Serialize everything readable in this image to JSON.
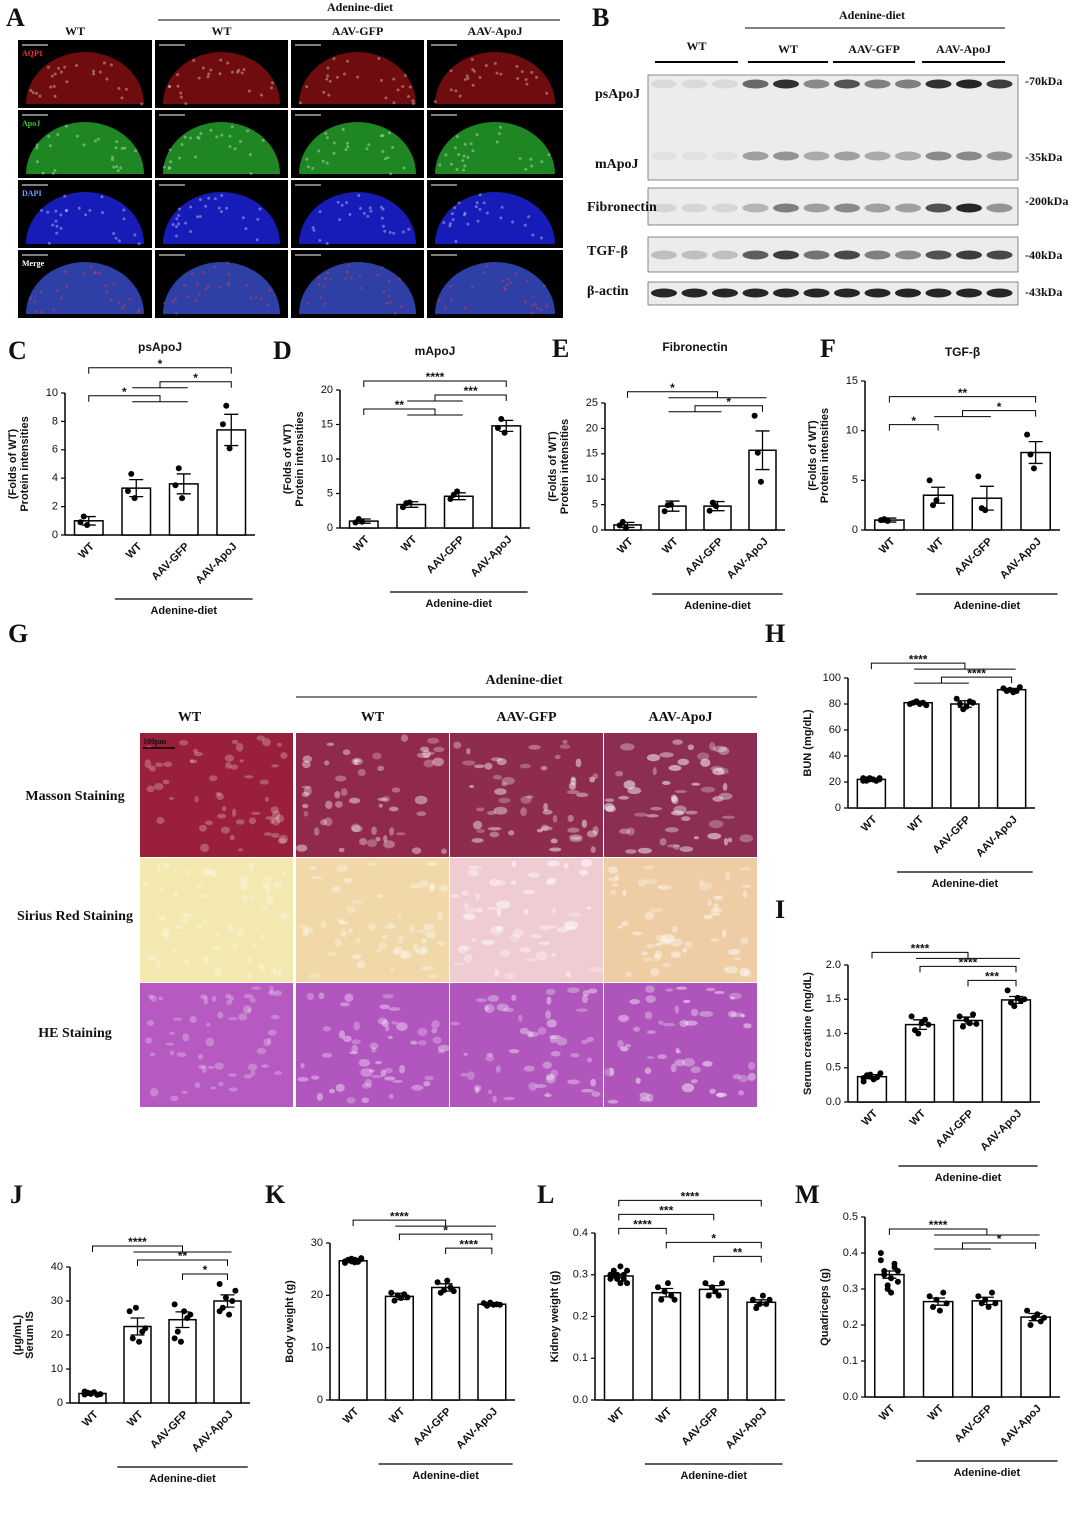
{
  "panel_a": {
    "letter": "A",
    "group_label": "Adenine-diet",
    "columns": [
      "WT",
      "WT",
      "AAV-GFP",
      "AAV-ApoJ"
    ],
    "rows": [
      "AQP1",
      "ApoJ",
      "DAPI",
      "Merge"
    ]
  },
  "panel_b": {
    "letter": "B",
    "group_label": "Adenine-diet",
    "columns": [
      "WT",
      "WT",
      "AAV-GFP",
      "AAV-ApoJ"
    ],
    "rows": [
      "psApoJ",
      "mApoJ",
      "Fibronectin",
      "TGF-β",
      "β-actin"
    ],
    "markers": [
      "-70kDa",
      "-35kDa",
      "-200kDa",
      "-40kDa",
      "-43kDa"
    ]
  },
  "panel_g": {
    "letter": "G",
    "group_label": "Adenine-diet",
    "columns": [
      "WT",
      "WT",
      "AAV-GFP",
      "AAV-ApoJ"
    ],
    "rows": [
      "Masson Staining",
      "Sirius Red Staining",
      "HE Staining"
    ],
    "scale_bar": "100μm"
  },
  "chart_data": [
    {
      "type": "bar",
      "panel": "C",
      "title": "psApoJ",
      "ylabel": [
        "Protein intensities",
        "(Folds of WT)"
      ],
      "categories": [
        "WT",
        "WT",
        "AAV-GFP",
        "AAV-ApoJ"
      ],
      "group_label": "Adenine-diet",
      "values": [
        1.0,
        3.3,
        3.6,
        7.4
      ],
      "errors": [
        0.3,
        0.6,
        0.7,
        1.1
      ],
      "points": [
        [
          0.9,
          1.3,
          0.7
        ],
        [
          3.1,
          4.3,
          2.6
        ],
        [
          3.5,
          4.7,
          2.6
        ],
        [
          7.8,
          9.1,
          6.1
        ]
      ],
      "ylim": [
        0,
        10
      ],
      "yticks": [
        0,
        2,
        4,
        6,
        8,
        10
      ],
      "annotations": [
        "*",
        "*",
        "*"
      ]
    },
    {
      "type": "bar",
      "panel": "D",
      "title": "mApoJ",
      "ylabel": [
        "Protein intensities",
        "(Folds of WT)"
      ],
      "categories": [
        "WT",
        "WT",
        "AAV-GFP",
        "AAV-ApoJ"
      ],
      "group_label": "Adenine-diet",
      "values": [
        1.0,
        3.4,
        4.6,
        14.8
      ],
      "errors": [
        0.3,
        0.4,
        0.5,
        0.8
      ],
      "points": [
        [
          0.8,
          1.3,
          0.9
        ],
        [
          3.0,
          3.6,
          3.7
        ],
        [
          4.2,
          4.8,
          5.3
        ],
        [
          14.5,
          15.8,
          13.8
        ]
      ],
      "ylim": [
        0,
        20
      ],
      "yticks": [
        0,
        5,
        10,
        15,
        20
      ],
      "annotations": [
        "****",
        "***",
        "**"
      ]
    },
    {
      "type": "bar",
      "panel": "E",
      "title": "Fibronectin",
      "ylabel": [
        "Protein intensities",
        "(Folds of WT)"
      ],
      "categories": [
        "WT",
        "WT",
        "AAV-GFP",
        "AAV-ApoJ"
      ],
      "group_label": "Adenine-diet",
      "values": [
        1.0,
        4.7,
        4.7,
        15.7
      ],
      "errors": [
        0.5,
        1.0,
        0.9,
        3.8
      ],
      "points": [
        [
          0.9,
          1.6,
          0.4
        ],
        [
          3.7,
          4.9,
          5.0
        ],
        [
          3.8,
          5.4,
          4.7
        ],
        [
          22.5,
          15.2,
          9.5
        ]
      ],
      "ylim": [
        0,
        25
      ],
      "yticks": [
        0,
        5,
        10,
        15,
        20,
        25
      ],
      "annotations": [
        "*",
        "*"
      ]
    },
    {
      "type": "bar",
      "panel": "F",
      "title": "TGF-β",
      "ylabel": [
        "Protein intensities",
        "(Folds of WT)"
      ],
      "categories": [
        "WT",
        "WT",
        "AAV-GFP",
        "AAV-ApoJ"
      ],
      "group_label": "Adenine-diet",
      "values": [
        1.0,
        3.5,
        3.2,
        7.8
      ],
      "errors": [
        0.2,
        0.8,
        1.2,
        1.1
      ],
      "points": [
        [
          1.0,
          1.1,
          0.9
        ],
        [
          5.0,
          2.5,
          3.0
        ],
        [
          5.4,
          2.2,
          2.0
        ],
        [
          9.6,
          7.6,
          6.2
        ]
      ],
      "ylim": [
        0,
        15
      ],
      "yticks": [
        0,
        5,
        10,
        15
      ],
      "annotations": [
        "**",
        "*",
        "*"
      ]
    },
    {
      "type": "bar",
      "panel": "H",
      "ylabel": [
        "BUN (mg/dL)"
      ],
      "categories": [
        "WT",
        "WT",
        "AAV-GFP",
        "AAV-ApoJ"
      ],
      "group_label": "Adenine-diet",
      "values": [
        22,
        81,
        80,
        91
      ],
      "errors": [
        0.5,
        1.2,
        2.5,
        1.0
      ],
      "points": [
        [
          21,
          22,
          23,
          22,
          21,
          22,
          23,
          21,
          22,
          22,
          21,
          23
        ],
        [
          80,
          81,
          82,
          80,
          81,
          79
        ],
        [
          84,
          80,
          76,
          78,
          82,
          81
        ],
        [
          92,
          90,
          91,
          89,
          90,
          93
        ]
      ],
      "ylim": [
        0,
        100
      ],
      "yticks": [
        0,
        20,
        40,
        60,
        80,
        100
      ],
      "annotations": [
        "****",
        "****"
      ]
    },
    {
      "type": "bar",
      "panel": "I",
      "ylabel": [
        "Serum creatine (mg/dL)"
      ],
      "categories": [
        "WT",
        "WT",
        "AAV-GFP",
        "AAV-ApoJ"
      ],
      "group_label": "Adenine-diet",
      "values": [
        0.37,
        1.13,
        1.19,
        1.49
      ],
      "errors": [
        0.03,
        0.07,
        0.05,
        0.05
      ],
      "points": [
        [
          0.35,
          0.38,
          0.4,
          0.33,
          0.36,
          0.42,
          0.3,
          0.39,
          0.37
        ],
        [
          1.25,
          1.05,
          1.0,
          1.15,
          1.2,
          1.13
        ],
        [
          1.25,
          1.1,
          1.2,
          1.15,
          1.28,
          1.14
        ],
        [
          1.63,
          1.45,
          1.4,
          1.52,
          1.48,
          1.5
        ]
      ],
      "ylim": [
        0,
        2
      ],
      "yticks": [
        {
          "value": 0,
          "label": "0.0"
        },
        0.5,
        {
          "value": 1,
          "label": "1.0"
        },
        1.5,
        {
          "value": 2,
          "label": "2.0"
        }
      ],
      "annotations": [
        "****",
        "****",
        "***"
      ]
    },
    {
      "type": "bar",
      "panel": "J",
      "ylabel": [
        "Serum IS",
        "(μg/mL)"
      ],
      "categories": [
        "WT",
        "WT",
        "AAV-GFP",
        "AAV-ApoJ"
      ],
      "group_label": "Adenine-diet",
      "values": [
        2.8,
        22.5,
        24.5,
        30.0
      ],
      "errors": [
        0.3,
        2.5,
        2.3,
        1.8
      ],
      "points": [
        [
          2.5,
          3.0,
          2.8,
          3.2,
          2.4,
          2.6,
          3.4,
          2.9,
          2.7
        ],
        [
          27,
          19,
          28,
          18,
          21,
          22
        ],
        [
          29,
          21,
          18,
          27,
          25,
          26,
          19
        ],
        [
          35,
          28,
          31,
          26,
          30,
          33,
          27
        ]
      ],
      "ylim": [
        0,
        40
      ],
      "yticks": [
        0,
        10,
        20,
        30,
        40
      ],
      "annotations": [
        "****",
        "**",
        "*"
      ]
    },
    {
      "type": "bar",
      "panel": "K",
      "ylabel": [
        "Body weight (g)"
      ],
      "categories": [
        "WT",
        "WT",
        "AAV-GFP",
        "AAV-ApoJ"
      ],
      "group_label": "Adenine-diet",
      "values": [
        26.6,
        19.8,
        21.5,
        18.3
      ],
      "errors": [
        0.3,
        0.6,
        0.7,
        0.3
      ],
      "points": [
        [
          26.5,
          26.8,
          27.0,
          26.3,
          26.6,
          26.9,
          26.2,
          26.7,
          26.5,
          26.8,
          26.4,
          27.1
        ],
        [
          20.5,
          19.0,
          20.0,
          19.5,
          20.2,
          19.6
        ],
        [
          22.5,
          20.5,
          21.0,
          22.8,
          21.5,
          20.8
        ],
        [
          18.5,
          18.0,
          18.6,
          18.2,
          18.3,
          18.2
        ]
      ],
      "ylim": [
        0,
        30
      ],
      "yticks": [
        0,
        10,
        20,
        30
      ],
      "annotations": [
        "****",
        "*",
        "****"
      ]
    },
    {
      "type": "bar",
      "panel": "L",
      "ylabel": [
        "Kidney weight (g)"
      ],
      "categories": [
        "WT",
        "WT",
        "AAV-GFP",
        "AAV-ApoJ"
      ],
      "group_label": "Adenine-diet",
      "values": [
        0.297,
        0.257,
        0.265,
        0.234
      ],
      "errors": [
        0.004,
        0.01,
        0.009,
        0.006
      ],
      "points": [
        [
          0.3,
          0.31,
          0.29,
          0.28,
          0.3,
          0.31,
          0.29,
          0.3,
          0.3,
          0.32,
          0.29,
          0.28
        ],
        [
          0.27,
          0.24,
          0.26,
          0.28,
          0.25,
          0.24
        ],
        [
          0.28,
          0.25,
          0.27,
          0.26,
          0.25,
          0.28
        ],
        [
          0.24,
          0.22,
          0.23,
          0.25,
          0.23,
          0.24
        ]
      ],
      "ylim": [
        0,
        0.4
      ],
      "yticks": [
        {
          "value": 0,
          "label": "0.0"
        },
        0.1,
        0.2,
        0.3,
        0.4
      ],
      "annotations": [
        "****",
        "***",
        "****",
        "*",
        "**"
      ]
    },
    {
      "type": "bar",
      "panel": "M",
      "ylabel": [
        "Quadriceps (g)"
      ],
      "categories": [
        "WT",
        "WT",
        "AAV-GFP",
        "AAV-ApoJ"
      ],
      "group_label": "Adenine-diet",
      "values": [
        0.34,
        0.265,
        0.267,
        0.222
      ],
      "errors": [
        0.01,
        0.01,
        0.01,
        0.01
      ],
      "points": [
        [
          0.38,
          0.35,
          0.3,
          0.33,
          0.36,
          0.32,
          0.4,
          0.34,
          0.31,
          0.29,
          0.37,
          0.35
        ],
        [
          0.28,
          0.25,
          0.27,
          0.24,
          0.29,
          0.26
        ],
        [
          0.28,
          0.26,
          0.27,
          0.25,
          0.29,
          0.26
        ],
        [
          0.24,
          0.2,
          0.22,
          0.23,
          0.21,
          0.22
        ]
      ],
      "ylim": [
        0,
        0.5
      ],
      "yticks": [
        {
          "value": 0,
          "label": "0.0"
        },
        0.1,
        0.2,
        0.3,
        0.4,
        0.5
      ],
      "annotations": [
        "****",
        "*"
      ]
    }
  ]
}
